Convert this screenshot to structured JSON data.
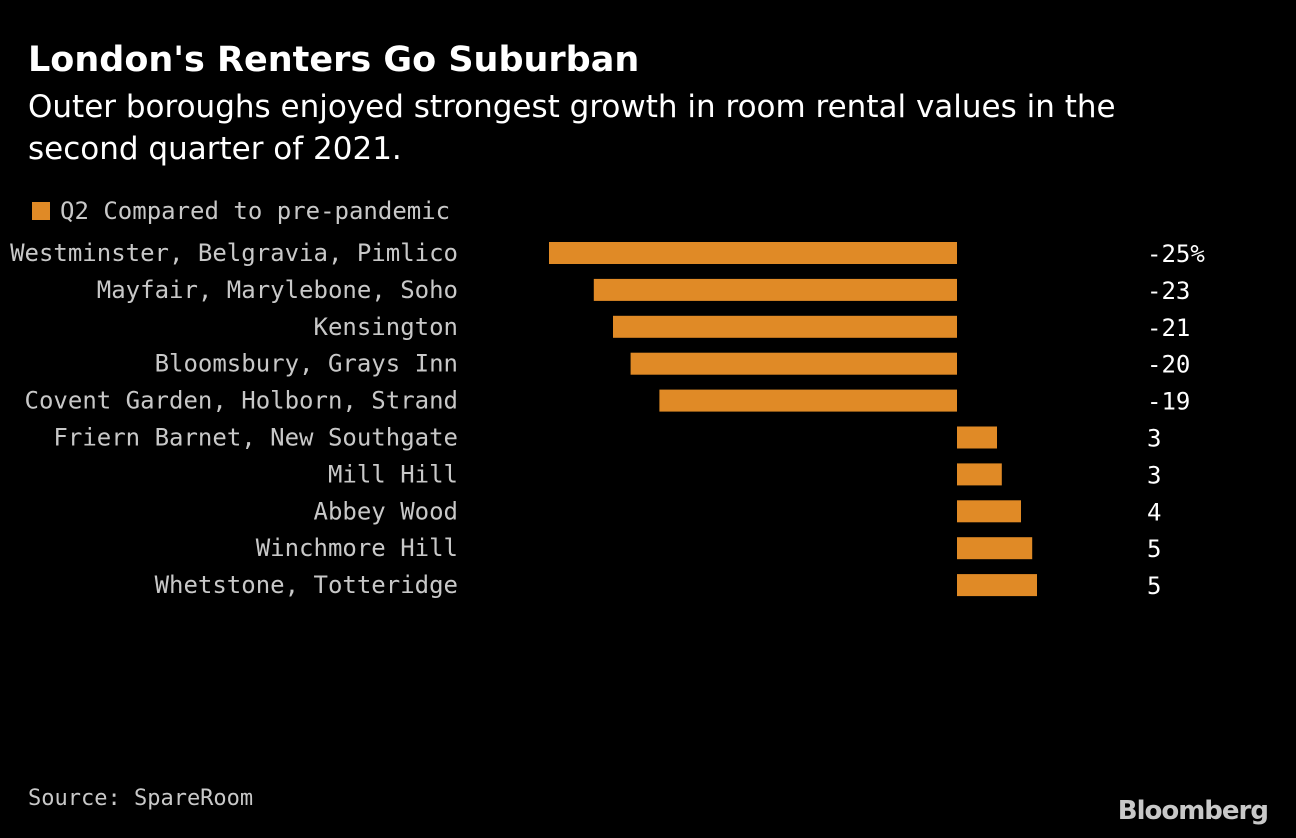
{
  "title": "London's Renters Go Suburban",
  "subtitle": "Outer boroughs enjoyed strongest growth in room rental values in the second quarter of 2021.",
  "source": "Source: SpareRoom",
  "logo_text": "Bloomberg",
  "colors": {
    "background": "#000000",
    "bar": "#e08a26",
    "text": "#ffffff",
    "muted_text": "#c8c8c8"
  },
  "chart_data": {
    "type": "bar",
    "orientation": "horizontal",
    "categories": [
      "Westminster, Belgravia, Pimlico",
      "Mayfair, Marylebone, Soho",
      "Kensington",
      "Bloomsbury, Grays Inn",
      "Covent Garden, Holborn, Strand",
      "Friern Barnet, New Southgate",
      "Mill Hill",
      "Abbey Wood",
      "Winchmore Hill",
      "Whetstone, Totteridge"
    ],
    "series": [
      {
        "name": "Q2 Compared to pre-pandemic",
        "values": [
          -25.5,
          -22.7,
          -21.5,
          -20.4,
          -18.6,
          2.5,
          2.8,
          4.0,
          4.7,
          5.0
        ],
        "labels": [
          "-25%",
          "-23",
          "-21",
          "-20",
          "-19",
          "3",
          "3",
          "4",
          "5",
          "5"
        ]
      }
    ],
    "xlim": [
      -26,
      5
    ],
    "grid": false,
    "legend_position": "top-left"
  }
}
